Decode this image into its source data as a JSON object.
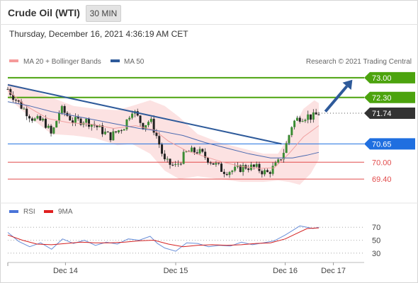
{
  "header": {
    "instrument": "Crude Oil (WTI)",
    "interval": "30 MIN",
    "timestamp": "Thursday, December 16, 2021 4:36:19 AM CET"
  },
  "colors": {
    "green": "#4ca30e",
    "blue": "#1f6fe0",
    "red": "#e24b4b",
    "dark": "#333333",
    "trend": "#2e5a9a",
    "bands": "#f9caca",
    "ma20": "#f0a0a0",
    "ma50": "#4b6ab0",
    "up": "#3a8c32",
    "down": "#222222",
    "rsi": "#6a8fd8",
    "rsi9": "#d42020"
  },
  "chart_data": [
    {
      "type": "candlestick",
      "legend": [
        {
          "name": "MA 20 + Bollinger Bands",
          "color": "#f59a9a"
        },
        {
          "name": "MA 50",
          "color": "#2e5a9a"
        }
      ],
      "credit": "Research © 2021 Trading Central",
      "x_ticks": [
        "Dec 14",
        "Dec 15",
        "Dec 16",
        "Dec 17"
      ],
      "x_tick_pos": [
        0.79,
        2.3,
        3.8,
        4.46
      ],
      "xlim": [
        0,
        4.6
      ],
      "ylim": [
        68.85,
        73.3
      ],
      "levels": [
        {
          "label": "73.00",
          "value": 73.0,
          "kind": "resistance"
        },
        {
          "label": "72.30",
          "value": 72.3,
          "kind": "resistance"
        },
        {
          "label": "71.74",
          "value": 71.74,
          "kind": "last"
        },
        {
          "label": "70.65",
          "value": 70.65,
          "kind": "pivot"
        },
        {
          "label": "70.00",
          "value": 70.0,
          "kind": "support"
        },
        {
          "label": "69.40",
          "value": 69.4,
          "kind": "support"
        }
      ],
      "trendline": {
        "from": [
          0,
          72.75
        ],
        "to": [
          3.75,
          70.65
        ]
      },
      "arrow": {
        "from": [
          4.35,
          71.8
        ],
        "to": [
          4.72,
          72.93
        ]
      },
      "close_path": [
        [
          0,
          72.6
        ],
        [
          0.18,
          72.0
        ],
        [
          0.36,
          71.5
        ],
        [
          0.5,
          71.45
        ],
        [
          0.6,
          70.95
        ],
        [
          0.72,
          71.9
        ],
        [
          0.9,
          71.45
        ],
        [
          1.05,
          71.5
        ],
        [
          1.2,
          71.3
        ],
        [
          1.4,
          70.9
        ],
        [
          1.6,
          71.3
        ],
        [
          1.7,
          71.9
        ],
        [
          1.85,
          71.3
        ],
        [
          1.95,
          71.5
        ],
        [
          2.05,
          70.85
        ],
        [
          2.15,
          70.0
        ],
        [
          2.3,
          69.85
        ],
        [
          2.45,
          70.35
        ],
        [
          2.6,
          70.4
        ],
        [
          2.8,
          70.0
        ],
        [
          2.95,
          69.7
        ],
        [
          3.1,
          69.7
        ],
        [
          3.25,
          69.85
        ],
        [
          3.4,
          69.8
        ],
        [
          3.55,
          69.6
        ],
        [
          3.7,
          69.95
        ],
        [
          3.8,
          70.5
        ],
        [
          3.9,
          71.4
        ],
        [
          4.0,
          71.6
        ],
        [
          4.1,
          71.65
        ],
        [
          4.18,
          71.6
        ],
        [
          4.26,
          71.74
        ]
      ],
      "ma20": [
        [
          0,
          72.55
        ],
        [
          0.25,
          72.0
        ],
        [
          0.55,
          71.55
        ],
        [
          0.85,
          71.4
        ],
        [
          1.15,
          71.35
        ],
        [
          1.45,
          71.2
        ],
        [
          1.75,
          71.3
        ],
        [
          2.0,
          71.15
        ],
        [
          2.2,
          70.75
        ],
        [
          2.45,
          70.4
        ],
        [
          2.7,
          70.2
        ],
        [
          2.95,
          70.0
        ],
        [
          3.2,
          69.85
        ],
        [
          3.45,
          69.78
        ],
        [
          3.65,
          69.8
        ],
        [
          3.85,
          70.3
        ],
        [
          4.05,
          70.9
        ],
        [
          4.26,
          71.3
        ]
      ],
      "ma50": [
        [
          0,
          72.15
        ],
        [
          0.3,
          72.0
        ],
        [
          0.6,
          71.8
        ],
        [
          0.9,
          71.65
        ],
        [
          1.2,
          71.5
        ],
        [
          1.5,
          71.35
        ],
        [
          1.8,
          71.2
        ],
        [
          2.1,
          71.1
        ],
        [
          2.4,
          70.95
        ],
        [
          2.7,
          70.7
        ],
        [
          3.0,
          70.5
        ],
        [
          3.3,
          70.3
        ],
        [
          3.6,
          70.15
        ],
        [
          3.9,
          70.15
        ],
        [
          4.1,
          70.25
        ],
        [
          4.26,
          70.35
        ]
      ],
      "bb_upper": [
        [
          0,
          72.8
        ],
        [
          0.3,
          72.6
        ],
        [
          0.6,
          72.3
        ],
        [
          0.9,
          72.0
        ],
        [
          1.2,
          71.9
        ],
        [
          1.5,
          71.85
        ],
        [
          1.7,
          72.0
        ],
        [
          1.95,
          72.2
        ],
        [
          2.15,
          72.0
        ],
        [
          2.35,
          71.6
        ],
        [
          2.6,
          71.0
        ],
        [
          2.9,
          70.7
        ],
        [
          3.2,
          70.5
        ],
        [
          3.5,
          70.3
        ],
        [
          3.7,
          70.3
        ],
        [
          3.85,
          70.9
        ],
        [
          4.05,
          71.9
        ],
        [
          4.2,
          72.2
        ],
        [
          4.26,
          72.1
        ]
      ],
      "bb_lower": [
        [
          0,
          72.3
        ],
        [
          0.3,
          71.6
        ],
        [
          0.6,
          71.0
        ],
        [
          0.9,
          70.95
        ],
        [
          1.2,
          70.85
        ],
        [
          1.5,
          70.6
        ],
        [
          1.7,
          70.65
        ],
        [
          1.95,
          70.3
        ],
        [
          2.15,
          69.7
        ],
        [
          2.35,
          69.4
        ],
        [
          2.6,
          69.5
        ],
        [
          2.9,
          69.4
        ],
        [
          3.2,
          69.3
        ],
        [
          3.5,
          69.3
        ],
        [
          3.7,
          69.35
        ],
        [
          3.85,
          69.3
        ],
        [
          4.0,
          69.2
        ],
        [
          4.15,
          69.6
        ],
        [
          4.26,
          70.1
        ]
      ]
    },
    {
      "type": "line",
      "legend": [
        {
          "name": "RSI",
          "color": "#4a74d8"
        },
        {
          "name": "9MA",
          "color": "#e02020"
        }
      ],
      "ylim": [
        20,
        80
      ],
      "y_ticks": [
        70,
        50,
        30
      ],
      "rsi": [
        [
          0,
          62
        ],
        [
          0.15,
          48
        ],
        [
          0.3,
          40
        ],
        [
          0.45,
          46
        ],
        [
          0.6,
          36
        ],
        [
          0.75,
          52
        ],
        [
          0.9,
          45
        ],
        [
          1.05,
          50
        ],
        [
          1.2,
          42
        ],
        [
          1.35,
          47
        ],
        [
          1.5,
          44
        ],
        [
          1.65,
          52
        ],
        [
          1.8,
          50
        ],
        [
          1.95,
          56
        ],
        [
          2.05,
          45
        ],
        [
          2.15,
          38
        ],
        [
          2.3,
          33
        ],
        [
          2.45,
          46
        ],
        [
          2.6,
          45
        ],
        [
          2.75,
          40
        ],
        [
          2.9,
          42
        ],
        [
          3.05,
          41
        ],
        [
          3.2,
          47
        ],
        [
          3.35,
          43
        ],
        [
          3.5,
          46
        ],
        [
          3.65,
          49
        ],
        [
          3.8,
          58
        ],
        [
          3.9,
          65
        ],
        [
          4.0,
          72
        ],
        [
          4.1,
          70
        ],
        [
          4.18,
          68
        ],
        [
          4.26,
          70
        ]
      ],
      "ma9": [
        [
          0,
          58
        ],
        [
          0.2,
          50
        ],
        [
          0.4,
          44
        ],
        [
          0.6,
          43
        ],
        [
          0.8,
          45
        ],
        [
          1.0,
          47
        ],
        [
          1.2,
          46
        ],
        [
          1.4,
          46
        ],
        [
          1.6,
          47
        ],
        [
          1.8,
          49
        ],
        [
          2.0,
          50
        ],
        [
          2.2,
          44
        ],
        [
          2.4,
          40
        ],
        [
          2.6,
          42
        ],
        [
          2.8,
          43
        ],
        [
          3.0,
          42
        ],
        [
          3.2,
          43
        ],
        [
          3.4,
          45
        ],
        [
          3.6,
          46
        ],
        [
          3.8,
          52
        ],
        [
          3.95,
          60
        ],
        [
          4.1,
          68
        ],
        [
          4.26,
          69
        ]
      ]
    }
  ]
}
